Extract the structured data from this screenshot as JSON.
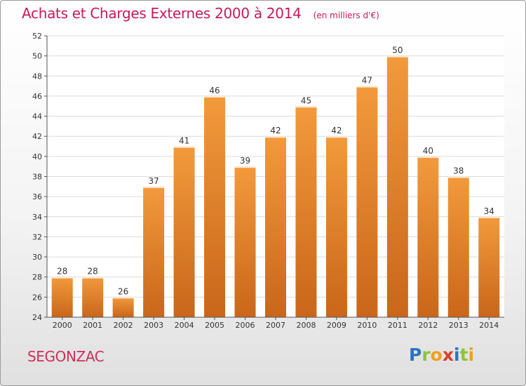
{
  "chart_data": {
    "type": "bar",
    "title": "Achats et Charges Externes 2000 à 2014",
    "subtitle": "(en milliers d'€)",
    "categories": [
      "2000",
      "2001",
      "2002",
      "2003",
      "2004",
      "2005",
      "2006",
      "2007",
      "2008",
      "2009",
      "2010",
      "2011",
      "2012",
      "2013",
      "2014"
    ],
    "values": [
      28,
      28,
      26,
      37,
      41,
      46,
      39,
      42,
      45,
      42,
      47,
      50,
      40,
      38,
      34
    ],
    "ylim": [
      24,
      52
    ],
    "yticks": [
      24,
      26,
      28,
      30,
      32,
      34,
      36,
      38,
      40,
      42,
      44,
      46,
      48,
      50,
      52
    ],
    "grid": true,
    "bar_color": "#f29a3c",
    "bar_color_dark": "#c9661a"
  },
  "location": "SEGONZAC",
  "brand": {
    "letters": [
      "P",
      "r",
      "o",
      "x",
      "i",
      "t",
      "i"
    ],
    "colors": [
      "#2a72c2",
      "#8cc43c",
      "#f0a020",
      "#e03a2a",
      "#2a72c2",
      "#8cc43c",
      "#f0a020"
    ]
  }
}
